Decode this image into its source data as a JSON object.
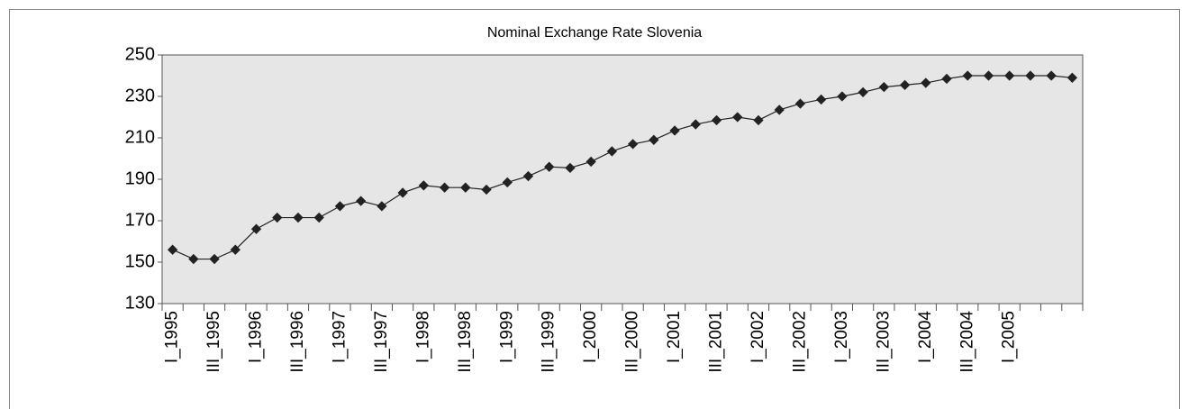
{
  "chart_data": {
    "type": "line",
    "title": "Nominal Exchange Rate Slovenia",
    "categories": [
      "I_1995",
      null,
      "III_1995",
      null,
      "I_1996",
      null,
      "III_1996",
      null,
      "I_1997",
      null,
      "III_1997",
      null,
      "I_1998",
      null,
      "III_1998",
      null,
      "I_1999",
      null,
      "III_1999",
      null,
      "I_2000",
      null,
      "III_2000",
      null,
      "I_2001",
      null,
      "III_2001",
      null,
      "I_2002",
      null,
      "III_2002",
      null,
      "I_2003",
      null,
      "III_2003",
      null,
      "I_2004",
      null,
      "III_2004",
      null,
      "I_2005",
      null,
      null,
      null
    ],
    "series": [
      {
        "color": "#222222",
        "values": [
          156,
          151.5,
          151.5,
          156,
          166,
          171.5,
          171.5,
          171.5,
          177,
          179.5,
          177,
          183.5,
          187,
          186,
          186,
          185,
          188.5,
          191.5,
          196,
          195.5,
          198.5,
          203.5,
          207,
          209,
          213.5,
          216.5,
          218.5,
          220,
          218.5,
          223.5,
          226.5,
          228.5,
          230,
          232,
          234.5,
          235.5,
          236.5,
          238.5,
          240,
          240,
          240,
          240,
          240,
          239
        ]
      }
    ],
    "ylim": [
      130,
      250
    ],
    "yticks": [
      130,
      150,
      170,
      190,
      210,
      230,
      250
    ]
  }
}
